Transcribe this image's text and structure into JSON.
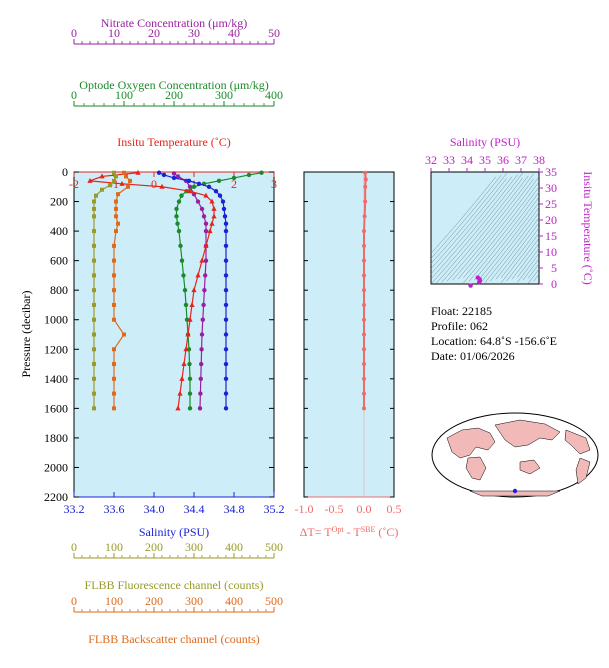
{
  "colors": {
    "nitrate": "#9a1fa0",
    "oxygen": "#1a8a2a",
    "temperature": "#e8231b",
    "salinity": "#1a22d8",
    "fluorescence": "#9a9a2a",
    "backscatter": "#e06a1a",
    "delta_t": "#f06a6a",
    "inset_salinity": "#c020c8",
    "panel_bg": "#cdeef8"
  },
  "axes": {
    "nitrate": {
      "label": "Nitrate Concentration (μm/kg)",
      "ticks": [
        "0",
        "10",
        "20",
        "30",
        "40",
        "50"
      ],
      "range": [
        0,
        50
      ]
    },
    "oxygen": {
      "label": "Optode Oxygen Concentration (μm/kg)",
      "ticks": [
        "0",
        "100",
        "200",
        "300",
        "400"
      ],
      "range": [
        0,
        400
      ]
    },
    "temperature": {
      "label": "Insitu Temperature (˚C)",
      "ticks": [
        "-2",
        "-1",
        "0",
        "1",
        "2",
        "3"
      ],
      "range": [
        -2,
        3
      ]
    },
    "pressure": {
      "label": "Pressure (decibar)",
      "ticks": [
        "0",
        "200",
        "400",
        "600",
        "800",
        "1000",
        "1200",
        "1400",
        "1600",
        "1800",
        "2000",
        "2200"
      ],
      "range": [
        0,
        2200
      ]
    },
    "salinity": {
      "label": "Salinity (PSU)",
      "ticks": [
        "33.2",
        "33.6",
        "34.0",
        "34.4",
        "34.8",
        "35.2"
      ],
      "range": [
        33.2,
        35.2
      ]
    },
    "fluorescence": {
      "label": "FLBB Fluorescence channel (counts)",
      "ticks": [
        "0",
        "100",
        "200",
        "300",
        "400",
        "500"
      ],
      "range": [
        0,
        500
      ]
    },
    "backscatter": {
      "label": "FLBB Backscatter channel (counts)",
      "ticks": [
        "0",
        "100",
        "200",
        "300",
        "400",
        "500"
      ],
      "range": [
        0,
        500
      ]
    },
    "delta_t": {
      "label_main": "ΔT= T",
      "sup1": "Opt",
      "label_mid": " - T",
      "sup2": "SBE",
      "label_end": " (˚C)",
      "ticks": [
        "-1.0",
        "-0.5",
        "0.0",
        "0.5"
      ],
      "range": [
        -1.0,
        0.5
      ]
    }
  },
  "inset": {
    "top_label": "Salinity (PSU)",
    "top_ticks": [
      "32",
      "33",
      "34",
      "35",
      "36",
      "37",
      "38"
    ],
    "right_label": "Insitu Temperature (˚C)",
    "right_ticks": [
      "0",
      "5",
      "10",
      "15",
      "20",
      "25",
      "30",
      "35"
    ],
    "x_range": [
      32,
      38
    ],
    "y_range": [
      0,
      35
    ]
  },
  "info": {
    "float": "Float:  22185",
    "profile": "Profile:  062",
    "location": "Location:  64.8˚S  -156.6˚E",
    "date": "Date:  01/06/2026"
  },
  "chart_data": {
    "type": "line",
    "y_variable": "pressure (decibar)",
    "y_range": [
      0,
      2200
    ],
    "y_inverted": true,
    "series": [
      {
        "name": "Nitrate",
        "axis": "nitrate",
        "pressure": [
          10,
          30,
          60,
          100,
          150,
          200,
          250,
          300,
          350,
          400,
          500,
          600,
          700,
          800,
          900,
          1000,
          1100,
          1200,
          1300,
          1400,
          1500,
          1600
        ],
        "values": [
          25,
          26,
          28,
          29,
          30,
          31,
          32,
          32.5,
          33,
          33,
          33,
          33,
          32.8,
          32.6,
          32.4,
          32.2,
          32.0,
          31.9,
          31.8,
          31.7,
          31.6,
          31.5
        ]
      },
      {
        "name": "Oxygen",
        "axis": "oxygen",
        "pressure": [
          5,
          20,
          40,
          60,
          80,
          100,
          130,
          160,
          200,
          250,
          300,
          350,
          400,
          500,
          600,
          700,
          800,
          900,
          1000,
          1100,
          1200,
          1300,
          1400,
          1500,
          1600
        ],
        "values": [
          375,
          350,
          320,
          290,
          260,
          240,
          225,
          215,
          210,
          205,
          205,
          207,
          210,
          213,
          216,
          219,
          222,
          224,
          226,
          228,
          230,
          231,
          232,
          232,
          232
        ]
      },
      {
        "name": "Insitu Temperature",
        "axis": "temperature",
        "pressure": [
          5,
          30,
          60,
          80,
          100,
          130,
          160,
          200,
          250,
          300,
          350,
          400,
          500,
          600,
          700,
          800,
          900,
          1000,
          1100,
          1200,
          1300,
          1400,
          1500,
          1600
        ],
        "values": [
          -0.4,
          -1.3,
          -1.6,
          -0.8,
          0.2,
          0.9,
          1.3,
          1.45,
          1.5,
          1.5,
          1.45,
          1.4,
          1.3,
          1.2,
          1.1,
          1.0,
          0.95,
          0.9,
          0.85,
          0.8,
          0.75,
          0.7,
          0.65,
          0.6
        ]
      },
      {
        "name": "Salinity",
        "axis": "salinity",
        "pressure": [
          5,
          20,
          40,
          60,
          80,
          100,
          130,
          160,
          200,
          250,
          300,
          350,
          400,
          500,
          600,
          700,
          800,
          900,
          1000,
          1100,
          1200,
          1300,
          1400,
          1500,
          1600
        ],
        "values": [
          34.05,
          34.1,
          34.2,
          34.35,
          34.45,
          34.55,
          34.62,
          34.66,
          34.69,
          34.7,
          34.71,
          34.72,
          34.72,
          34.72,
          34.72,
          34.72,
          34.72,
          34.72,
          34.72,
          34.72,
          34.72,
          34.72,
          34.72,
          34.72,
          34.72
        ]
      },
      {
        "name": "FLBB Fluorescence",
        "axis": "fluorescence",
        "pressure": [
          5,
          30,
          60,
          90,
          120,
          160,
          200,
          250,
          300,
          400,
          500,
          600,
          700,
          800,
          900,
          1000,
          1100,
          1200,
          1300,
          1400,
          1500,
          1600
        ],
        "values": [
          100,
          105,
          100,
          90,
          70,
          55,
          50,
          50,
          50,
          50,
          50,
          50,
          50,
          50,
          50,
          50,
          50,
          50,
          50,
          50,
          50,
          50
        ]
      },
      {
        "name": "FLBB Backscatter",
        "axis": "backscatter",
        "pressure": [
          5,
          30,
          60,
          100,
          150,
          200,
          250,
          300,
          350,
          400,
          500,
          600,
          700,
          800,
          900,
          1000,
          1100,
          1200,
          1300,
          1400,
          1500,
          1600
        ],
        "values": [
          125,
          130,
          140,
          135,
          110,
          105,
          105,
          105,
          110,
          105,
          100,
          100,
          100,
          100,
          100,
          100,
          125,
          100,
          100,
          100,
          100,
          100
        ]
      },
      {
        "name": "Delta T",
        "axis": "delta_t",
        "pressure": [
          5,
          50,
          100,
          200,
          300,
          400,
          500,
          600,
          700,
          800,
          900,
          1000,
          1100,
          1200,
          1300,
          1400,
          1500,
          1600
        ],
        "values": [
          0.02,
          0.03,
          0.02,
          0.02,
          0.01,
          0.0,
          0.0,
          0.0,
          0.0,
          0.0,
          0.0,
          0.0,
          0.0,
          0.0,
          0.0,
          0.0,
          0.0,
          0.0
        ]
      }
    ],
    "ts_inset": {
      "type": "scatter",
      "x": [
        34.7,
        34.72,
        34.68,
        34.6,
        34.2
      ],
      "y": [
        1.5,
        1.0,
        0.6,
        2.0,
        -0.5
      ]
    }
  }
}
